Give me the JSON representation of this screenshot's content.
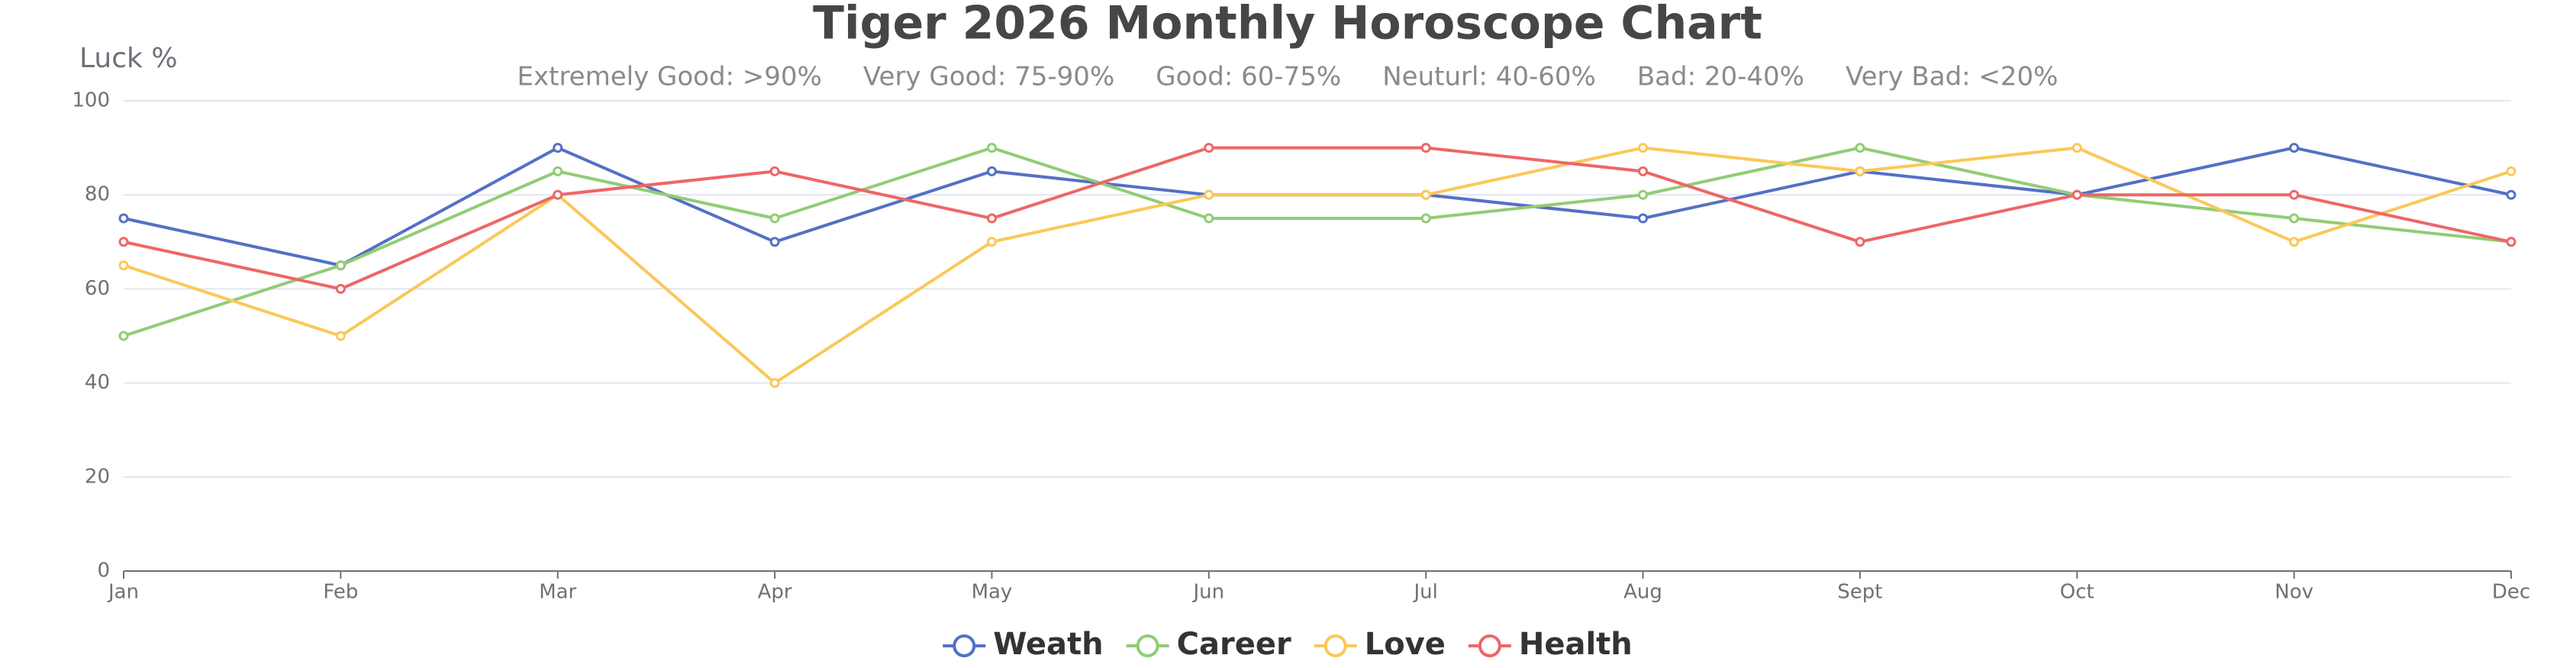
{
  "chart_data": {
    "type": "line",
    "title": "Tiger 2026 Monthly Horoscope Chart",
    "subtitle": "Extremely Good: >90%     Very Good: 75-90%     Good: 60-75%     Neuturl: 40-60%     Bad: 20-40%     Very Bad: <20%",
    "y_label": "Luck %",
    "categories": [
      "Jan",
      "Feb",
      "Mar",
      "Apr",
      "May",
      "Jun",
      "Jul",
      "Aug",
      "Sept",
      "Oct",
      "Nov",
      "Dec"
    ],
    "series": [
      {
        "name": "Weath",
        "color": "#5470c6",
        "values": [
          75,
          65,
          90,
          70,
          85,
          80,
          80,
          75,
          85,
          80,
          90,
          80
        ]
      },
      {
        "name": "Career",
        "color": "#91cc75",
        "values": [
          50,
          65,
          85,
          75,
          90,
          75,
          75,
          80,
          90,
          80,
          75,
          70
        ]
      },
      {
        "name": "Love",
        "color": "#fac858",
        "values": [
          65,
          50,
          80,
          40,
          70,
          80,
          80,
          90,
          85,
          90,
          70,
          85
        ]
      },
      {
        "name": "Health",
        "color": "#ee6666",
        "values": [
          70,
          60,
          80,
          85,
          75,
          90,
          90,
          85,
          70,
          80,
          80,
          70
        ]
      }
    ],
    "ylim": [
      0,
      100
    ],
    "yticks": [
      0,
      20,
      40,
      60,
      80,
      100
    ],
    "grid": true
  }
}
